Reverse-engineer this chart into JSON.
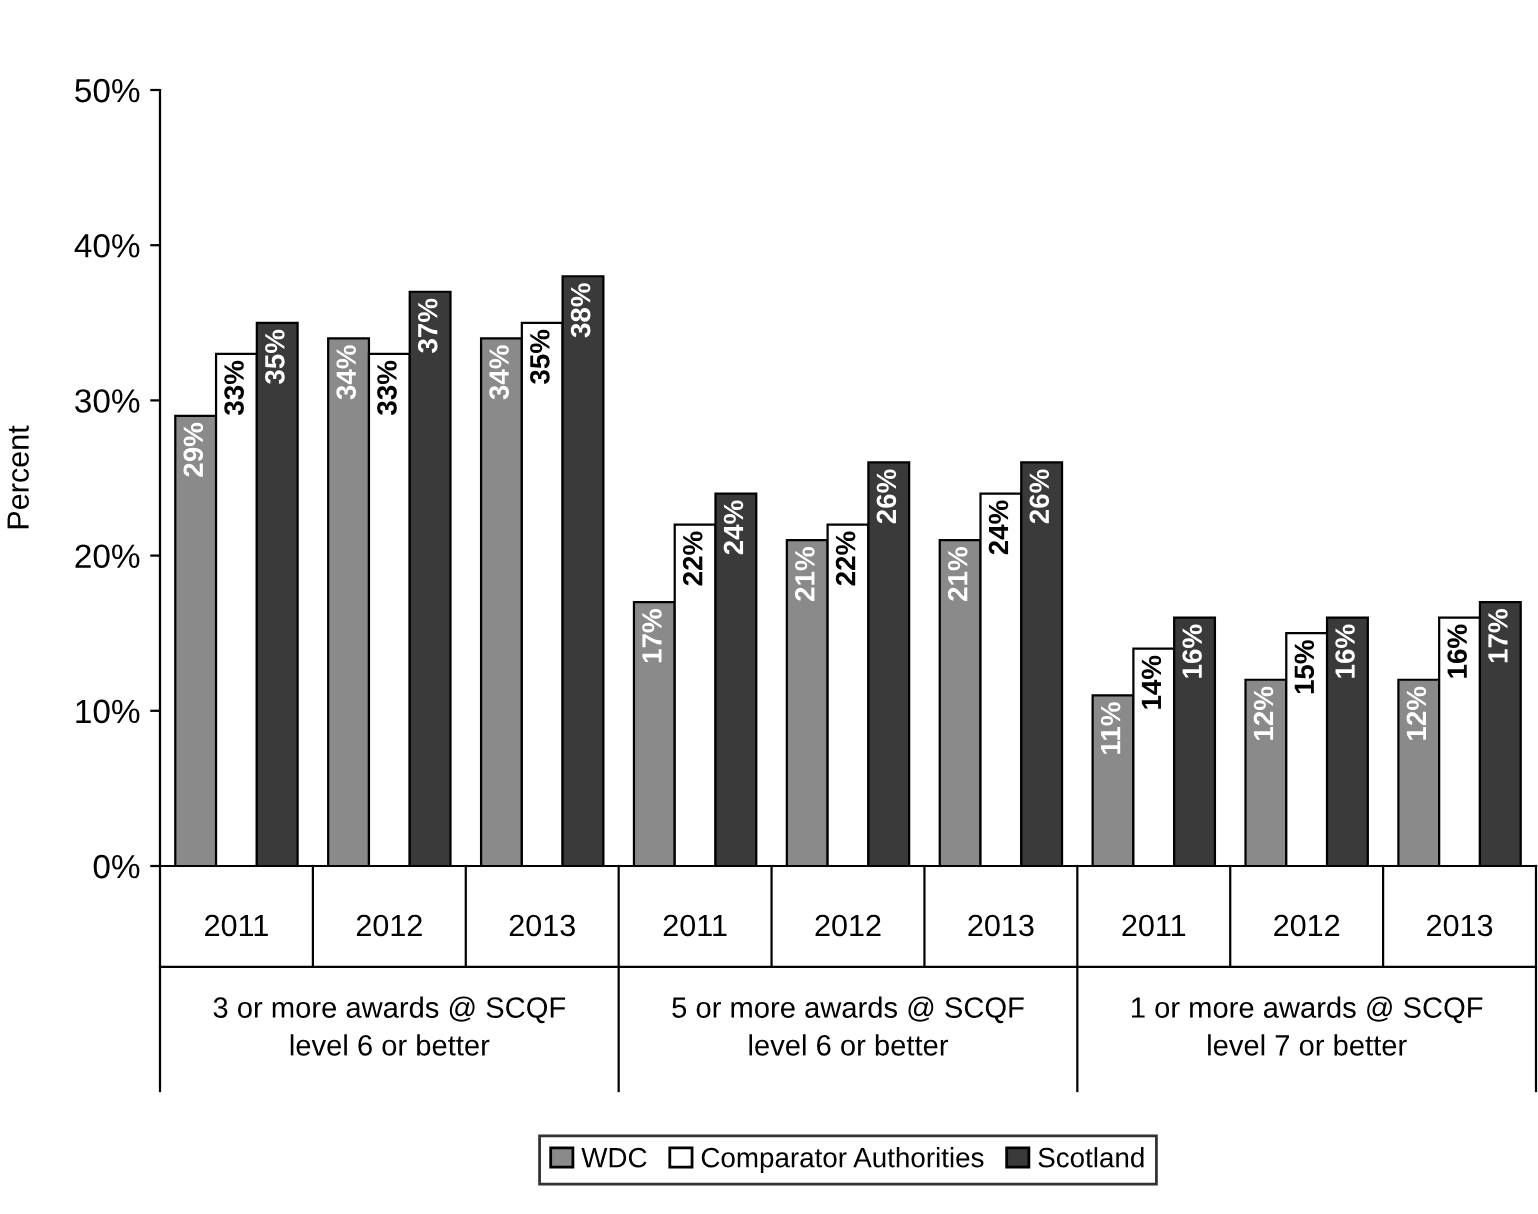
{
  "chart_data": {
    "type": "bar",
    "ylabel": "Percent",
    "categories": [
      "2011",
      "2012",
      "2013",
      "2011",
      "2012",
      "2013",
      "2011",
      "2012",
      "2013"
    ],
    "annotations": [
      "3 or more awards @ SCQF level 6 or better",
      "5 or more awards @ SCQF level 6 or better",
      "1 or more awards @ SCQF level 7 or better"
    ],
    "series": [
      {
        "name": "WDC",
        "color": "#8a8a8a",
        "values": [
          29,
          34,
          34,
          17,
          21,
          21,
          11,
          12,
          12
        ],
        "value_labels": [
          "29%",
          "34%",
          "34%",
          "17%",
          "21%",
          "21%",
          "11%",
          "12%",
          "12%"
        ]
      },
      {
        "name": "Comparator Authorities",
        "color": "#ffffff",
        "values": [
          33,
          33,
          35,
          22,
          22,
          24,
          14,
          15,
          16
        ],
        "value_labels": [
          "33%",
          "33%",
          "35%",
          "22%",
          "22%",
          "24%",
          "14%",
          "15%",
          "16%"
        ]
      },
      {
        "name": "Scotland",
        "color": "#3a3a3a",
        "values": [
          35,
          37,
          38,
          24,
          26,
          26,
          16,
          16,
          17
        ],
        "value_labels": [
          "35%",
          "37%",
          "38%",
          "24%",
          "26%",
          "26%",
          "16%",
          "16%",
          "17%"
        ]
      }
    ],
    "ylim": [
      0,
      50
    ],
    "yticks": [
      {
        "value": 0,
        "label": "0%"
      },
      {
        "value": 10,
        "label": "10%"
      },
      {
        "value": 20,
        "label": "20%"
      },
      {
        "value": 30,
        "label": "30%"
      },
      {
        "value": 40,
        "label": "40%"
      },
      {
        "value": 50,
        "label": "50%"
      }
    ],
    "grid": false,
    "legend": "bottom"
  }
}
